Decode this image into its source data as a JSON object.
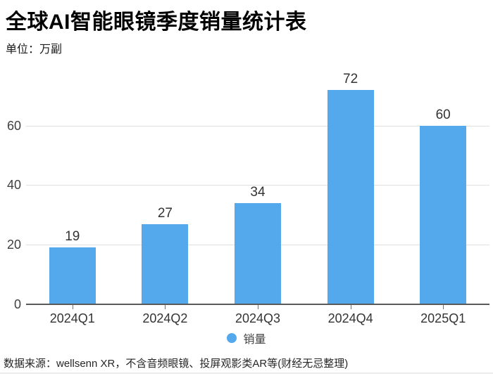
{
  "page": {
    "title": "全球AI智能眼镜季度销量统计表",
    "unit_label": "单位：万副",
    "source": "数据来源：wellsenn XR，不含音频眼镜、投屏观影类AR等(财经无忌整理)"
  },
  "legend": {
    "label": "销量"
  },
  "colors": {
    "bar": "#54a8ec",
    "grid": "#e0e0e0",
    "axis_line": "#595959",
    "tick": "#737373",
    "value_label": "#333333",
    "axis_label": "#404040"
  },
  "chart_data": {
    "type": "bar",
    "title": "全球AI智能眼镜季度销量统计表",
    "categories": [
      "2024Q1",
      "2024Q2",
      "2024Q3",
      "2024Q4",
      "2025Q1"
    ],
    "series": [
      {
        "name": "销量",
        "values": [
          19,
          27,
          34,
          72,
          60
        ]
      }
    ],
    "xlabel": "",
    "ylabel": "万副",
    "ylim": [
      0,
      80
    ],
    "yticks": [
      0,
      20,
      40,
      60
    ],
    "grid": true,
    "legend_position": "bottom",
    "value_labels": true
  }
}
